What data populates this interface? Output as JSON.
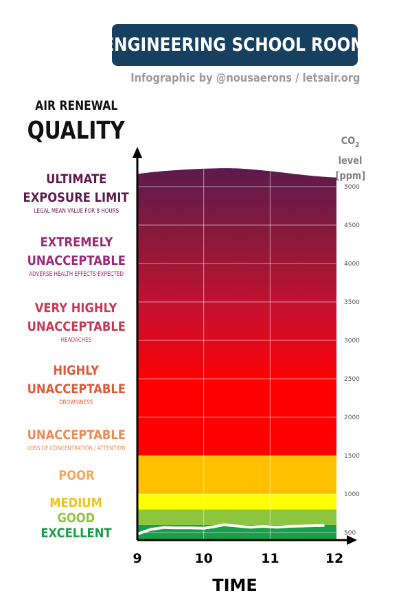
{
  "header": {
    "title": "ENGINEERING SCHOOL ROOM",
    "subtitle": "Infographic by @nousaerons / letsair.org"
  },
  "left_heading": {
    "line1": "AIR RENEWAL",
    "line2": "QUALITY"
  },
  "co2_heading": {
    "prefix": "CO",
    "subscript": "2",
    "suffix": " level",
    "unit": "[ppm]"
  },
  "categories": [
    {
      "label_lines": [
        "ULTIMATE",
        "EXPOSURE LIMIT"
      ],
      "note": "LEGAL MEAN VALUE FOR 8 HOURS",
      "color": "#5c1a4e"
    },
    {
      "label_lines": [
        "EXTREMELY",
        "UNACCEPTABLE"
      ],
      "note": "ADVERSE HEALTH EFFECTS EXPECTED",
      "color": "#9b2a76"
    },
    {
      "label_lines": [
        "VERY HIGHLY",
        "UNACCEPTABLE"
      ],
      "note": "HEADACHES",
      "color": "#c53a55"
    },
    {
      "label_lines": [
        "HIGHLY",
        "UNACCEPTABLE"
      ],
      "note": "DROWSINESS",
      "color": "#e05a3a"
    },
    {
      "label_lines": [
        "UNACCEPTABLE"
      ],
      "note": "LOSS OF CONCENTRATION / ATTENTION",
      "color": "#ec8a55"
    },
    {
      "label_lines": [
        "POOR"
      ],
      "note": "",
      "color": "#f5a75a"
    },
    {
      "label_lines": [
        "MEDIUM"
      ],
      "note": "",
      "color": "#f0c419"
    },
    {
      "label_lines": [
        "GOOD"
      ],
      "note": "",
      "color": "#8cc63f"
    },
    {
      "label_lines": [
        "EXCELLENT"
      ],
      "note": "",
      "color": "#1a9e4a"
    }
  ],
  "chart_data": {
    "type": "line",
    "xlabel": "TIME",
    "ylabel": "CO2 level [ppm]",
    "xlim": [
      9,
      12
    ],
    "ylim": [
      400,
      5200
    ],
    "x_ticks": [
      9,
      10,
      11,
      12
    ],
    "y_ticks": [
      500,
      1000,
      1500,
      2000,
      2500,
      3000,
      3500,
      4000,
      4500,
      5000
    ],
    "grid": true,
    "bands": [
      {
        "from": 400,
        "to": 600,
        "color": "#1a9e4a"
      },
      {
        "from": 600,
        "to": 800,
        "color": "#8cc63f"
      },
      {
        "from": 800,
        "to": 1000,
        "color": "#ffff00"
      },
      {
        "from": 1000,
        "to": 1500,
        "color": "#ffc000"
      },
      {
        "from": 1500,
        "to": 5200,
        "gradient": [
          "#ff0000",
          "#ff0000",
          "#c8102e",
          "#8b1a3a",
          "#5c1a4e"
        ]
      }
    ],
    "series": [
      {
        "color": "#ffffff",
        "x": [
          9.0,
          9.2,
          9.4,
          9.6,
          9.8,
          10.0,
          10.15,
          10.3,
          10.5,
          10.7,
          10.9,
          11.1,
          11.3,
          11.5,
          11.7,
          11.8
        ],
        "y": [
          480,
          540,
          565,
          560,
          560,
          555,
          575,
          600,
          585,
          570,
          580,
          570,
          580,
          585,
          590,
          590
        ]
      }
    ]
  }
}
